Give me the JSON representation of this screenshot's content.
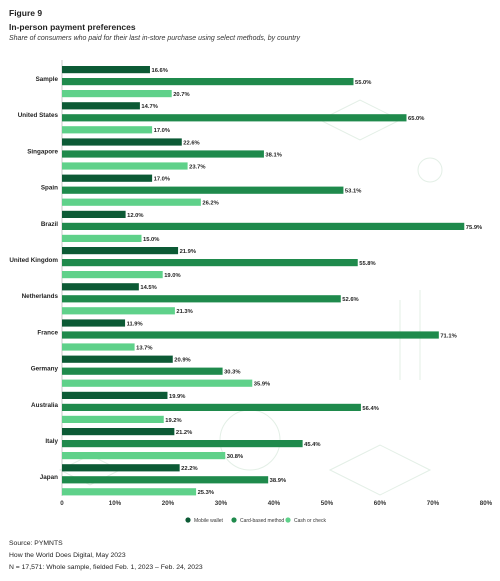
{
  "figure_label": "Figure 9",
  "chart_data": {
    "type": "bar",
    "orientation": "horizontal",
    "title": "In-person payment preferences",
    "subtitle": "Share of consumers who paid for their last in-store purchase using select methods, by country",
    "categories": [
      "Sample",
      "United States",
      "Singapore",
      "Spain",
      "Brazil",
      "United Kingdom",
      "Netherlands",
      "France",
      "Germany",
      "Australia",
      "Italy",
      "Japan"
    ],
    "series": [
      {
        "name": "Mobile wallet",
        "color": "#0c5a35",
        "values": [
          16.6,
          14.7,
          22.6,
          17.0,
          12.0,
          21.9,
          14.5,
          11.9,
          20.9,
          19.9,
          21.2,
          22.2
        ]
      },
      {
        "name": "Card-based method",
        "color": "#1f8a4c",
        "values": [
          55.0,
          65.0,
          38.1,
          53.1,
          75.9,
          55.8,
          52.6,
          71.1,
          30.3,
          56.4,
          45.4,
          38.9
        ]
      },
      {
        "name": "Cash or check",
        "color": "#5fd18a",
        "values": [
          20.7,
          17.0,
          23.7,
          26.2,
          15.0,
          19.0,
          21.3,
          13.7,
          35.9,
          19.2,
          30.8,
          25.3
        ]
      }
    ],
    "xlim": [
      0,
      80
    ],
    "xticks": [
      "0",
      "10%",
      "20%",
      "30%",
      "40%",
      "50%",
      "60%",
      "70%",
      "80%"
    ],
    "legend_position": "bottom-center",
    "grid": false
  },
  "footer": {
    "source": "Source: PYMNTS",
    "publication": "How the World Does Digital, May 2023",
    "note": "N = 17,571: Whole sample, fielded Feb. 1, 2023 – Feb. 24, 2023"
  }
}
